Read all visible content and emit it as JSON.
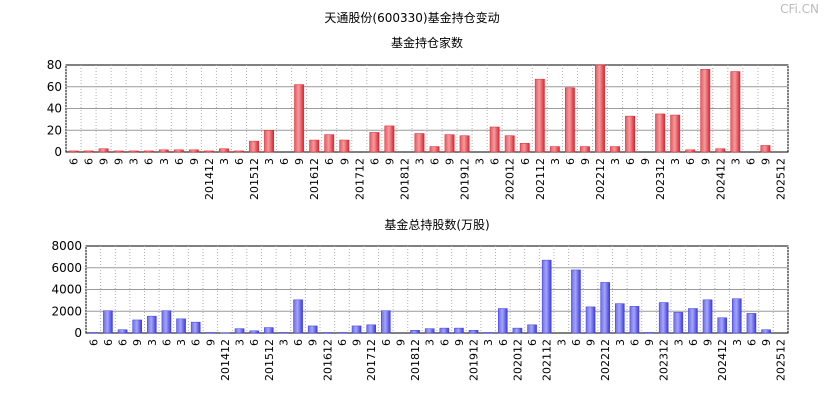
{
  "title": "天通股份(600330)基金持仓变动",
  "watermark": "CFi.CN",
  "chart_data": [
    {
      "type": "bar",
      "title": "基金持仓家数",
      "ylim": [
        0,
        80
      ],
      "yticks": [
        0,
        20,
        40,
        60,
        80
      ],
      "grid": true,
      "bar_color": "#e0222b",
      "categories": [
        "6",
        "6",
        "9",
        "9",
        "3",
        "6",
        "3",
        "6",
        "9",
        "201412",
        "3",
        "6",
        "201512",
        "3",
        "6",
        "9",
        "201612",
        "6",
        "9",
        "201712",
        "6",
        "9",
        "201812",
        "3",
        "6",
        "9",
        "201912",
        "3",
        "6",
        "202012",
        "6",
        "202112",
        "3",
        "6",
        "9",
        "202212",
        "3",
        "6",
        "9",
        "202312",
        "3",
        "6",
        "9",
        "202412",
        "3",
        "6",
        "9",
        "202512"
      ],
      "values": [
        1,
        1,
        3,
        1,
        1,
        1,
        2,
        2,
        2,
        1,
        3,
        1,
        10,
        20,
        0,
        62,
        11,
        16,
        11,
        0,
        18,
        24,
        0,
        17,
        5,
        16,
        15,
        0,
        23,
        15,
        8,
        67,
        5,
        59,
        5,
        80,
        5,
        33,
        0,
        35,
        34,
        2,
        76,
        3,
        74,
        0,
        6,
        0
      ]
    },
    {
      "type": "bar",
      "title": "基金总持股数(万股)",
      "ylim": [
        0,
        8000
      ],
      "yticks": [
        0,
        2000,
        4000,
        6000,
        8000
      ],
      "grid": true,
      "bar_color": "#3a3ae8",
      "categories": [
        "6",
        "6",
        "6",
        "9",
        "3",
        "6",
        "3",
        "6",
        "9",
        "201412",
        "3",
        "6",
        "201512",
        "3",
        "6",
        "9",
        "201612",
        "6",
        "9",
        "201712",
        "6",
        "9",
        "201812",
        "3",
        "6",
        "9",
        "201912",
        "3",
        "6",
        "202012",
        "6",
        "202112",
        "3",
        "6",
        "9",
        "202212",
        "3",
        "6",
        "9",
        "202312",
        "3",
        "6",
        "9",
        "202412",
        "3",
        "6",
        "9",
        "202512"
      ],
      "values": [
        50,
        2050,
        300,
        1200,
        1550,
        2050,
        1300,
        1000,
        50,
        30,
        400,
        200,
        500,
        50,
        3050,
        650,
        50,
        50,
        650,
        750,
        2050,
        0,
        250,
        400,
        450,
        450,
        250,
        50,
        2250,
        450,
        750,
        6700,
        0,
        5800,
        2400,
        4650,
        2700,
        2450,
        50,
        2800,
        1900,
        2250,
        3050,
        1400,
        3150,
        1800,
        300,
        0
      ]
    }
  ]
}
